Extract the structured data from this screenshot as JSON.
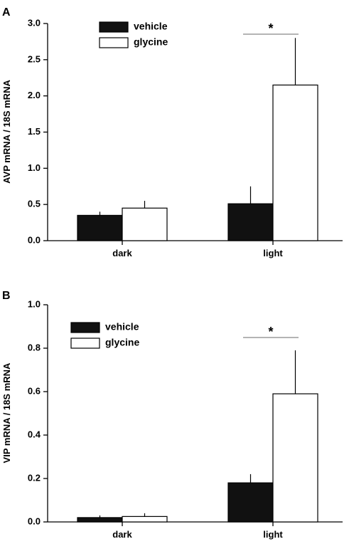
{
  "chart_data": [
    {
      "type": "bar",
      "panel": "A",
      "categories": [
        "dark",
        "light"
      ],
      "series": [
        {
          "name": "vehicle",
          "values": [
            0.35,
            0.51
          ],
          "errors": [
            0.05,
            0.24
          ]
        },
        {
          "name": "glycine",
          "values": [
            0.45,
            2.15
          ],
          "errors": [
            0.1,
            0.65
          ]
        }
      ],
      "ylabel": "AVP mRNA / 18S mRNA",
      "ylim": [
        0,
        3.0
      ],
      "yticks": [
        "0.0",
        "0.5",
        "1.0",
        "1.5",
        "2.0",
        "2.5",
        "3.0"
      ],
      "significance": {
        "category": "light",
        "label": "*"
      },
      "legend": "top-left"
    },
    {
      "type": "bar",
      "panel": "B",
      "categories": [
        "dark",
        "light"
      ],
      "series": [
        {
          "name": "vehicle",
          "values": [
            0.02,
            0.18
          ],
          "errors": [
            0.01,
            0.04
          ]
        },
        {
          "name": "glycine",
          "values": [
            0.025,
            0.59
          ],
          "errors": [
            0.015,
            0.2
          ]
        }
      ],
      "ylabel": "VIP mRNA / 18S mRNA",
      "ylim": [
        0,
        1.0
      ],
      "yticks": [
        "0.0",
        "0.2",
        "0.4",
        "0.6",
        "0.8",
        "1.0"
      ],
      "significance": {
        "category": "light",
        "label": "*"
      },
      "legend": "top-left"
    }
  ],
  "colors": {
    "vehicle": "#111111",
    "glycine": "#ffffff",
    "axis": "#000000",
    "sig_line": "#888888"
  }
}
